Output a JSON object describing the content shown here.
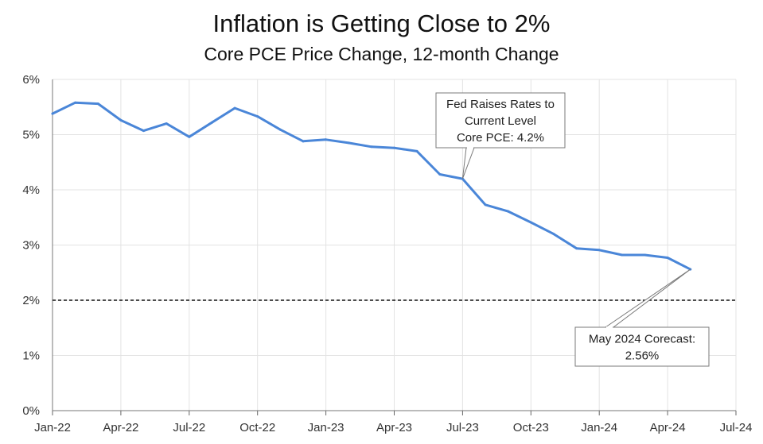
{
  "chart_data": {
    "type": "line",
    "title": "Inflation is Getting Close to 2%",
    "subtitle": "Core PCE Price Change, 12-month Change",
    "xlabel": "",
    "ylabel": "",
    "ylim": [
      0,
      6
    ],
    "yticks": [
      "0%",
      "1%",
      "2%",
      "3%",
      "4%",
      "5%",
      "6%"
    ],
    "xticks": [
      "Jan-22",
      "Apr-22",
      "Jul-22",
      "Oct-22",
      "Jan-23",
      "Apr-23",
      "Jul-23",
      "Oct-23",
      "Jan-24",
      "Apr-24",
      "Jul-24"
    ],
    "grid": true,
    "reference_line": {
      "value": 2,
      "style": "dashed"
    },
    "series": [
      {
        "color": "#4a86d8",
        "points": [
          {
            "x": "Jan-22",
            "y": 5.38
          },
          {
            "x": "Feb-22",
            "y": 5.58
          },
          {
            "x": "Mar-22",
            "y": 5.56
          },
          {
            "x": "Apr-22",
            "y": 5.26
          },
          {
            "x": "May-22",
            "y": 5.07
          },
          {
            "x": "Jun-22",
            "y": 5.2
          },
          {
            "x": "Jul-22",
            "y": 4.96
          },
          {
            "x": "Aug-22",
            "y": 5.22
          },
          {
            "x": "Sep-22",
            "y": 5.48
          },
          {
            "x": "Oct-22",
            "y": 5.33
          },
          {
            "x": "Nov-22",
            "y": 5.09
          },
          {
            "x": "Dec-22",
            "y": 4.88
          },
          {
            "x": "Jan-23",
            "y": 4.91
          },
          {
            "x": "Feb-23",
            "y": 4.85
          },
          {
            "x": "Mar-23",
            "y": 4.78
          },
          {
            "x": "Apr-23",
            "y": 4.76
          },
          {
            "x": "May-23",
            "y": 4.7
          },
          {
            "x": "Jun-23",
            "y": 4.28
          },
          {
            "x": "Jul-23",
            "y": 4.2
          },
          {
            "x": "Aug-23",
            "y": 3.73
          },
          {
            "x": "Sep-23",
            "y": 3.61
          },
          {
            "x": "Oct-23",
            "y": 3.41
          },
          {
            "x": "Nov-23",
            "y": 3.2
          },
          {
            "x": "Dec-23",
            "y": 2.94
          },
          {
            "x": "Jan-24",
            "y": 2.91
          },
          {
            "x": "Feb-24",
            "y": 2.82
          },
          {
            "x": "Mar-24",
            "y": 2.82
          },
          {
            "x": "Apr-24",
            "y": 2.77
          },
          {
            "x": "May-24",
            "y": 2.56
          }
        ]
      }
    ],
    "annotations": [
      {
        "x": "Jul-23",
        "y": 4.2,
        "lines": [
          "Fed Raises Rates to",
          "Current Level",
          "Core PCE: 4.2%"
        ]
      },
      {
        "x": "May-24",
        "y": 2.56,
        "lines": [
          "May 2024 Corecast:",
          "2.56%"
        ]
      }
    ]
  }
}
